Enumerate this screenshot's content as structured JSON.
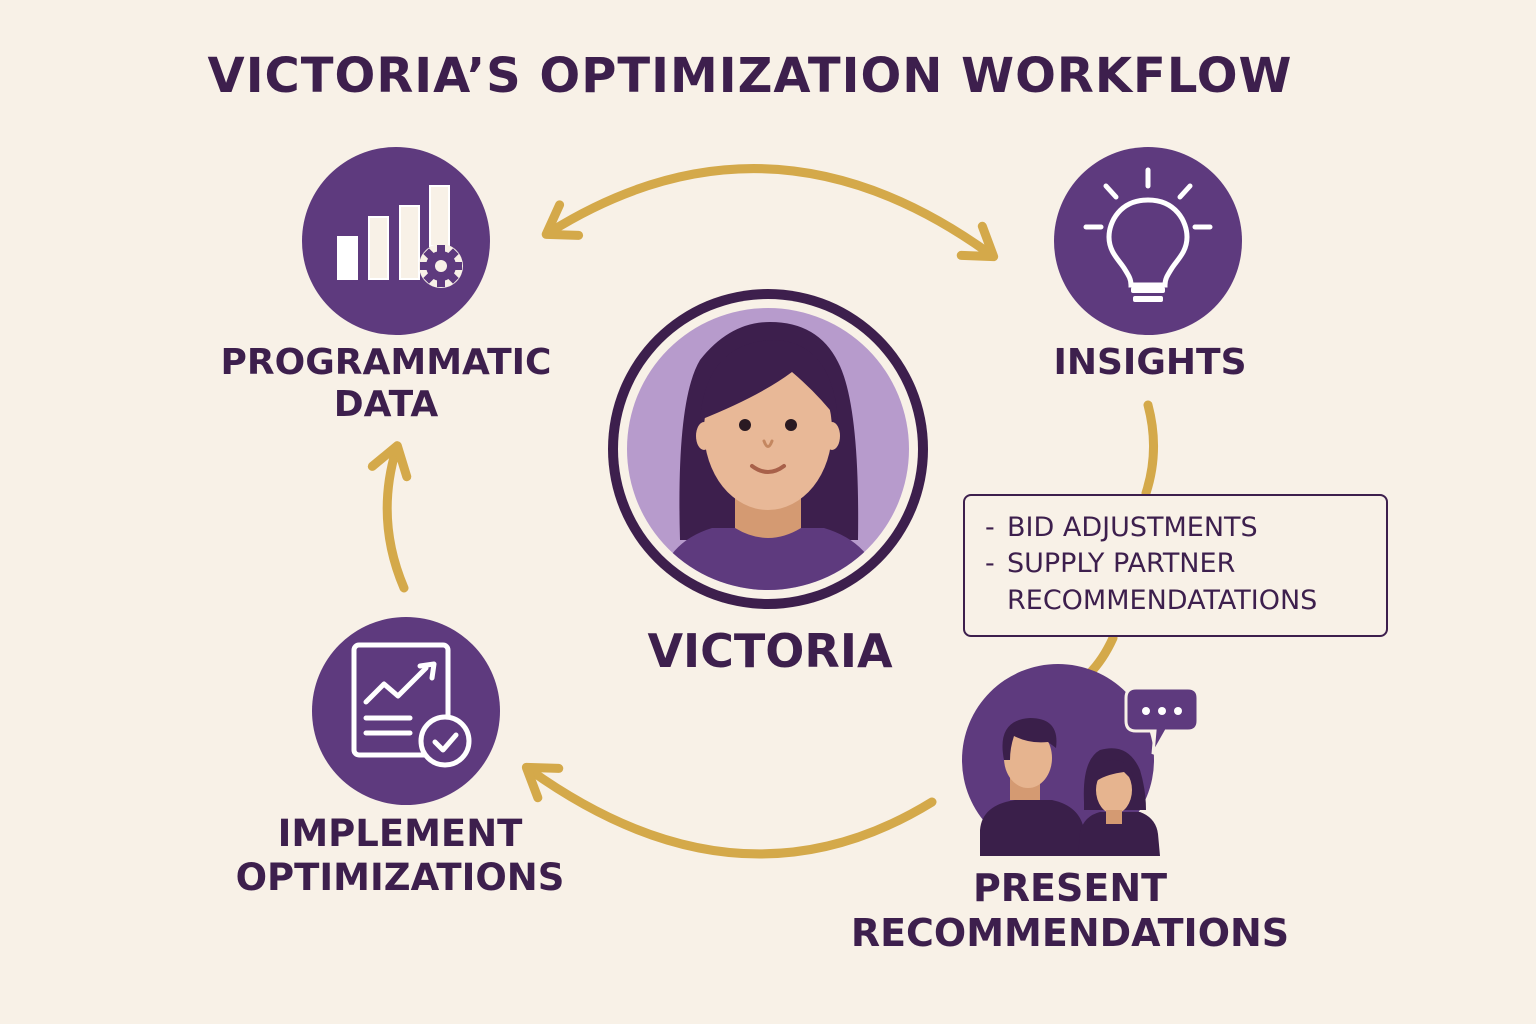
{
  "title": "VICTORIA’S OPTIMIZATION WORKFLOW",
  "colors": {
    "background": "#f8f1e7",
    "primary_purple": "#5e3a7e",
    "dark_text": "#3d1f4d",
    "arrow_gold": "#d4a94a",
    "avatar_bg": "#b79bcc"
  },
  "center": {
    "name": "VICTORIA",
    "icon": "person-avatar-icon"
  },
  "steps": [
    {
      "id": "programmatic-data",
      "label_lines": [
        "PROGRAMMATIC",
        "DATA"
      ],
      "icon": "bar-chart-gear-icon"
    },
    {
      "id": "insights",
      "label_lines": [
        "INSIGHTS"
      ],
      "icon": "lightbulb-icon"
    },
    {
      "id": "present-recommendations",
      "label_lines": [
        "PRESENT",
        "RECOMMENDATIONS"
      ],
      "icon": "people-chat-icon"
    },
    {
      "id": "implement-optimizations",
      "label_lines": [
        "IMPLEMENT",
        "OPTIMIZATIONS"
      ],
      "icon": "report-check-icon"
    }
  ],
  "note": {
    "items": [
      {
        "dash": "-",
        "text": "BID ADJUSTMENTS"
      },
      {
        "dash": "-",
        "text": "SUPPLY PARTNER RECOMMENDATATIONS"
      }
    ]
  }
}
